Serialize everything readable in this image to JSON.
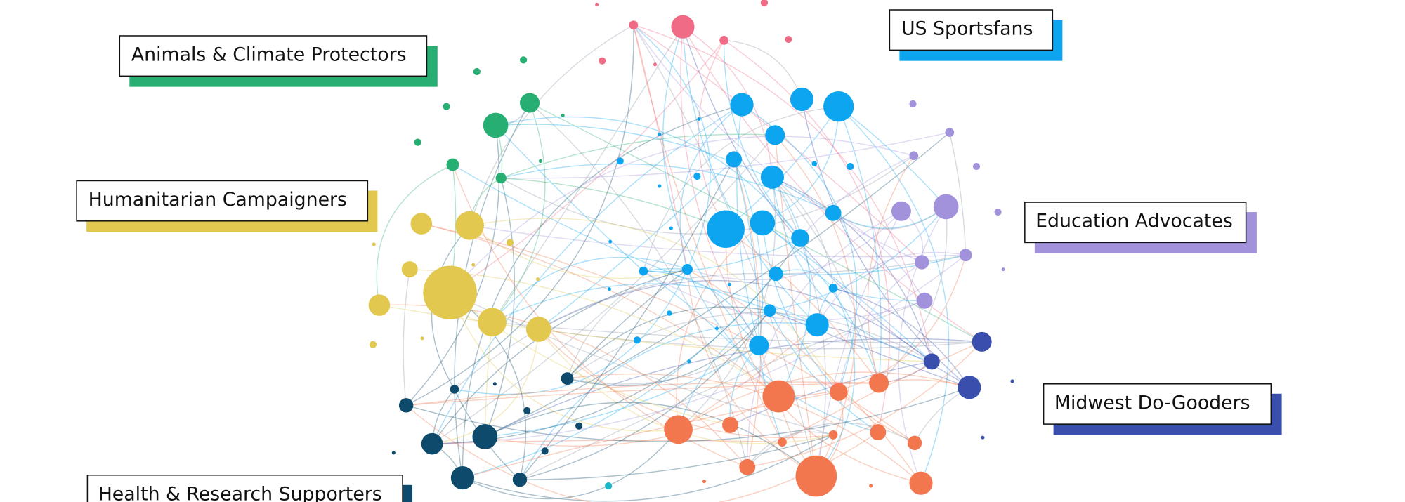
{
  "clusters": [
    {
      "label": "Animals & Climate Protectors"
    },
    {
      "label": "US Sportsfans"
    },
    {
      "label": "Humanitarian Campaigners"
    },
    {
      "label": "Education Advocates"
    },
    {
      "label": "Midwest Do-Gooders"
    },
    {
      "label": "Health & Research Supporters"
    }
  ]
}
